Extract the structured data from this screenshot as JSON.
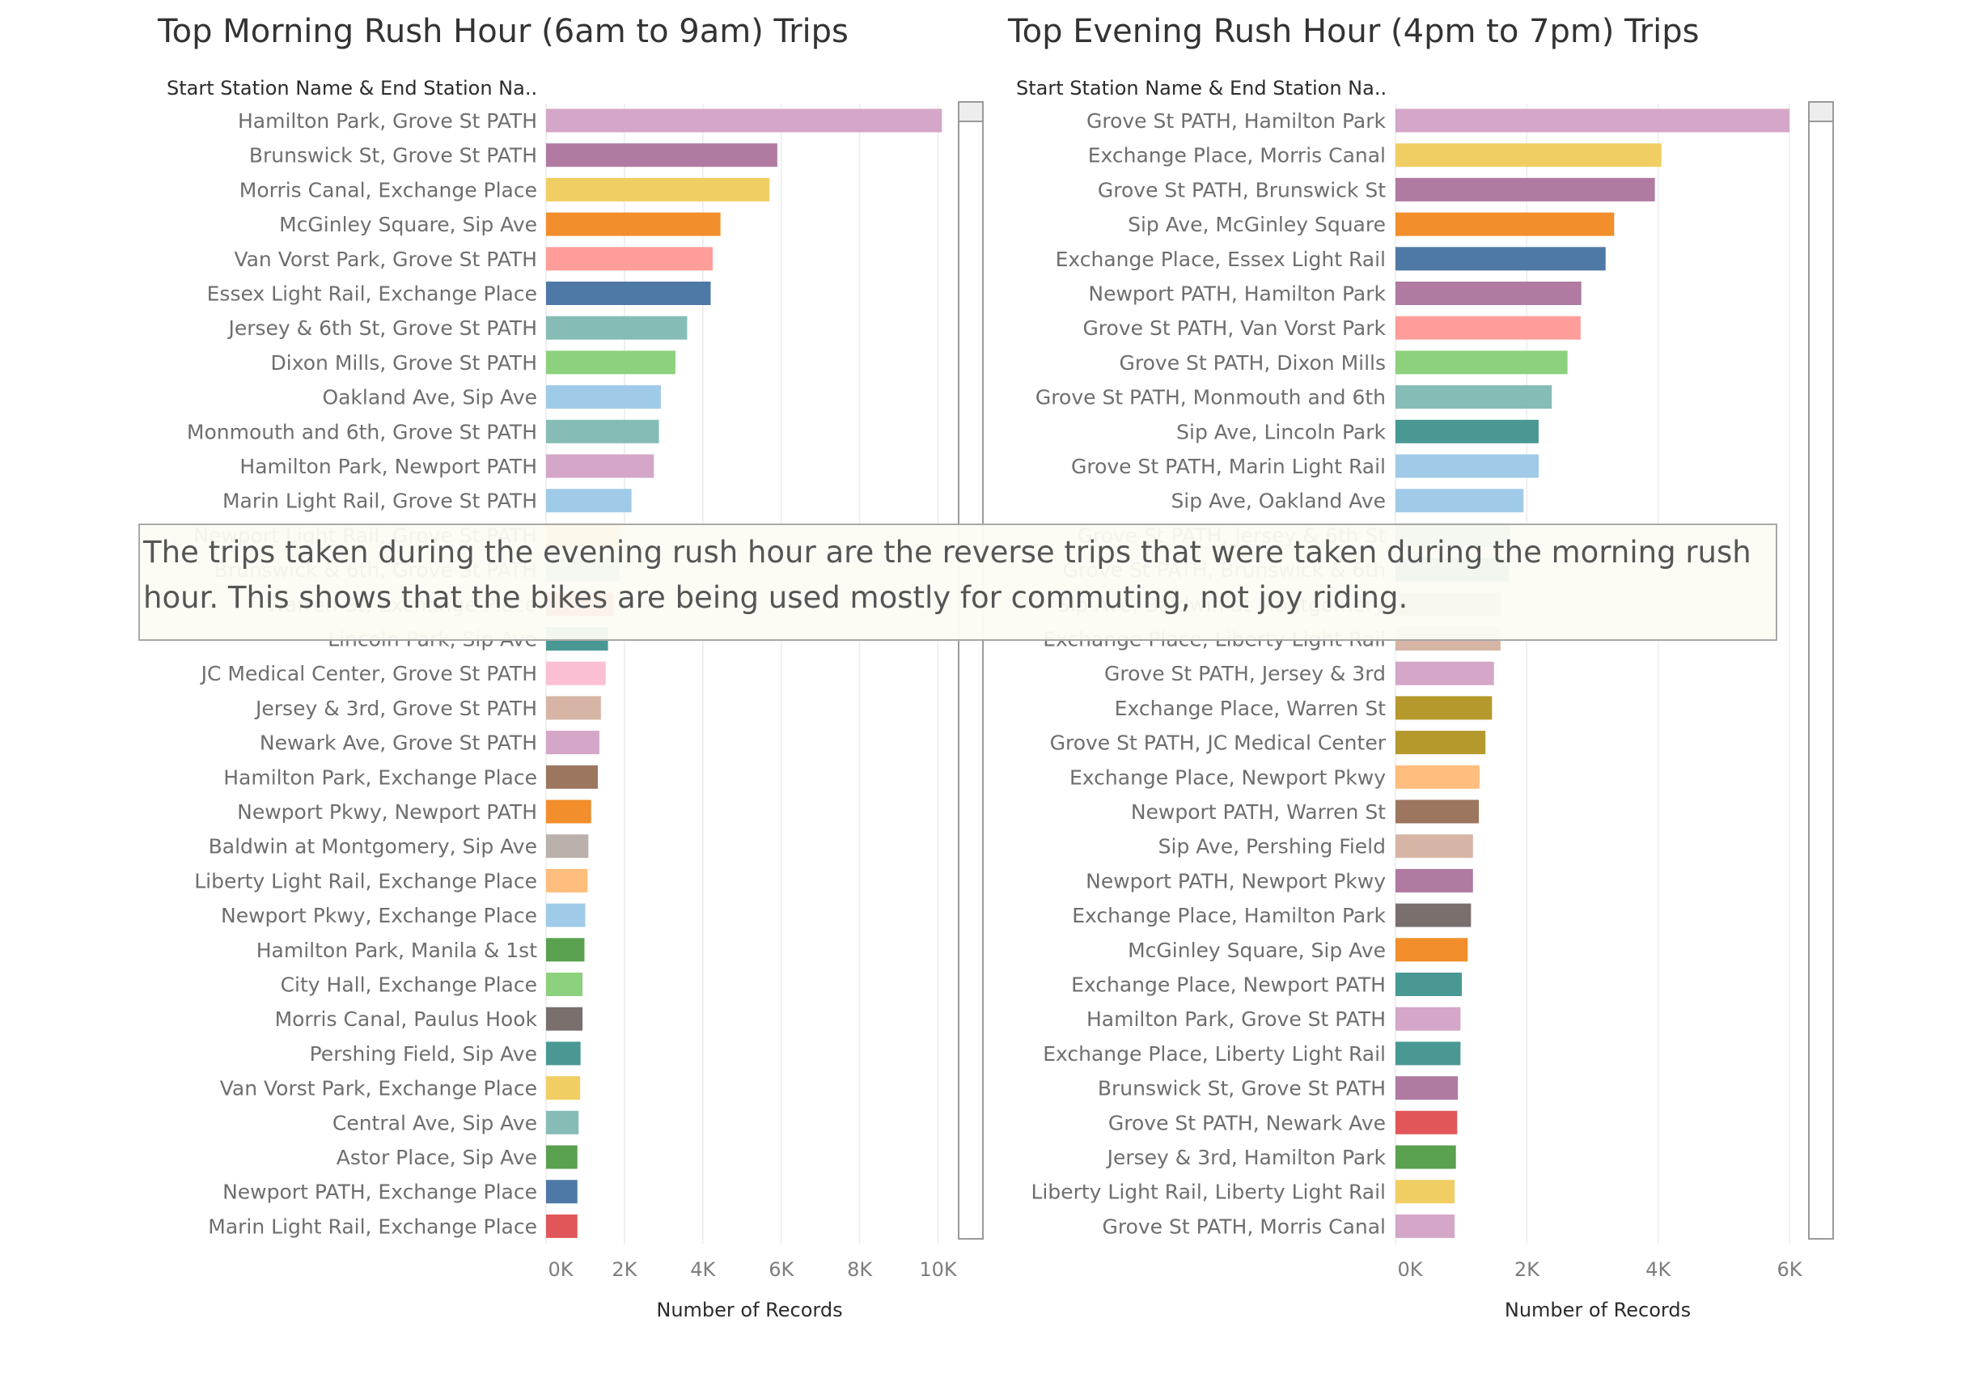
{
  "chart_data": [
    {
      "type": "bar",
      "orientation": "horizontal",
      "title": "Top Morning Rush Hour (6am to 9am) Trips",
      "row_header": "Start Station Name & End Station Na..",
      "xlabel": "Number of Records",
      "xlim": [
        0,
        11000
      ],
      "xticks": [
        0,
        2000,
        4000,
        6000,
        8000,
        10000
      ],
      "xtick_labels": [
        "0K",
        "2K",
        "4K",
        "6K",
        "8K",
        "10K"
      ],
      "grid": true,
      "categories": [
        "Hamilton Park, Grove St PATH",
        "Brunswick St, Grove St PATH",
        "Morris Canal, Exchange Place",
        "McGinley Square, Sip Ave",
        "Van Vorst Park, Grove St PATH",
        "Essex Light Rail, Exchange Place",
        "Jersey & 6th St, Grove St PATH",
        "Dixon Mills, Grove St PATH",
        "Oakland Ave, Sip Ave",
        "Monmouth and 6th, Grove St PATH",
        "Hamilton Park, Newport PATH",
        "Marin Light Rail, Grove St PATH",
        "Newport Light Rail, Grove St PATH",
        "Brunswick & 6th, Grove St PATH",
        "Warren St, Exchange Place",
        "Lincoln Park, Sip Ave",
        "JC Medical Center, Grove St PATH",
        "Jersey & 3rd, Grove St PATH",
        "Newark Ave, Grove St PATH",
        "Hamilton Park, Exchange Place",
        "Newport Pkwy, Newport PATH",
        "Baldwin at Montgomery, Sip Ave",
        "Liberty Light Rail, Exchange Place",
        "Newport Pkwy, Exchange Place",
        "Hamilton Park, Manila & 1st",
        "City Hall, Exchange Place",
        "Morris Canal, Paulus Hook",
        "Pershing Field, Sip Ave",
        "Van Vorst Park, Exchange Place",
        "Central Ave, Sip Ave",
        "Astor Place, Sip Ave",
        "Newport PATH, Exchange Place",
        "Marin Light Rail, Exchange Place"
      ],
      "values": [
        10100,
        5900,
        5700,
        4450,
        4250,
        4200,
        3600,
        3300,
        2930,
        2880,
        2750,
        2180,
        1900,
        1880,
        1720,
        1580,
        1520,
        1400,
        1360,
        1320,
        1150,
        1080,
        1060,
        1000,
        980,
        930,
        930,
        880,
        870,
        830,
        800,
        800,
        800
      ],
      "colors": [
        "#d4a6c8",
        "#b07aa1",
        "#f1ce63",
        "#f28e2b",
        "#ff9d9a",
        "#4e79a7",
        "#86bcb6",
        "#8cd17d",
        "#a0cbe8",
        "#86bcb6",
        "#d4a6c8",
        "#a0cbe8",
        "#f1ce63",
        "#86bcb6",
        "#e15759",
        "#499894",
        "#fabfd2",
        "#d7b5a6",
        "#d4a6c8",
        "#9d7660",
        "#f28e2b",
        "#bab0ac",
        "#ffbe7d",
        "#a0cbe8",
        "#59a14f",
        "#8cd17d",
        "#79706e",
        "#499894",
        "#f1ce63",
        "#86bcb6",
        "#59a14f",
        "#4e79a7",
        "#e15759"
      ]
    },
    {
      "type": "bar",
      "orientation": "horizontal",
      "title": "Top Evening Rush Hour (4pm to 7pm) Trips",
      "row_header": "Start Station Name & End Station Na..",
      "xlabel": "Number of Records",
      "xlim": [
        0,
        6300
      ],
      "xticks": [
        0,
        2000,
        4000,
        6000
      ],
      "xtick_labels": [
        "0K",
        "2K",
        "4K",
        "6K"
      ],
      "grid": true,
      "categories": [
        "Grove St PATH, Hamilton Park",
        "Exchange Place, Morris Canal",
        "Grove St PATH, Brunswick St",
        "Sip Ave, McGinley Square",
        "Exchange Place, Essex Light Rail",
        "Newport PATH, Hamilton Park",
        "Grove St PATH, Van Vorst Park",
        "Grove St PATH, Dixon Mills",
        "Grove St PATH, Monmouth and 6th",
        "Sip Ave, Lincoln Park",
        "Grove St PATH, Marin Light Rail",
        "Sip Ave, Oakland Ave",
        "Grove St PATH, Jersey & 6th St",
        "Grove St PATH, Brunswick & 6th",
        "Sip Ave, Baldwin at Montgomery",
        "Exchange Place, Liberty Light Rail",
        "Grove St PATH, Jersey & 3rd",
        "Exchange Place, Warren St",
        "Grove St PATH, JC Medical Center",
        "Exchange Place, Newport Pkwy",
        "Newport PATH, Warren St",
        "Sip Ave, Pershing Field",
        "Newport PATH, Newport Pkwy",
        "Exchange Place, Hamilton Park",
        "McGinley Square, Sip Ave",
        "Exchange Place, Newport PATH",
        "Hamilton Park, Grove St PATH",
        "Exchange Place, Liberty Light Rail",
        "Brunswick St, Grove St PATH",
        "Grove St PATH, Newark Ave",
        "Jersey & 3rd, Hamilton Park",
        "Liberty Light Rail, Liberty Light Rail",
        "Grove St PATH, Morris Canal"
      ],
      "values": [
        6000,
        4050,
        3950,
        3330,
        3200,
        2830,
        2820,
        2620,
        2380,
        2180,
        2180,
        1950,
        1750,
        1730,
        1610,
        1600,
        1500,
        1470,
        1370,
        1280,
        1270,
        1180,
        1180,
        1150,
        1100,
        1010,
        990,
        990,
        950,
        940,
        920,
        900,
        900
      ],
      "colors": [
        "#d4a6c8",
        "#f1ce63",
        "#b07aa1",
        "#f28e2b",
        "#4e79a7",
        "#b07aa1",
        "#ff9d9a",
        "#8cd17d",
        "#86bcb6",
        "#499894",
        "#a0cbe8",
        "#a0cbe8",
        "#86bcb6",
        "#499894",
        "#bab0ac",
        "#d7b5a6",
        "#d4a6c8",
        "#b6992d",
        "#b6992d",
        "#ffbe7d",
        "#9d7660",
        "#d7b5a6",
        "#b07aa1",
        "#79706e",
        "#f28e2b",
        "#499894",
        "#d4a6c8",
        "#499894",
        "#b07aa1",
        "#e15759",
        "#59a14f",
        "#f1ce63",
        "#d4a6c8"
      ]
    }
  ],
  "annotation": "The trips taken during the evening rush hour are the reverse trips that were taken during the morning rush hour. This shows that the bikes are being used mostly for commuting, not joy riding."
}
